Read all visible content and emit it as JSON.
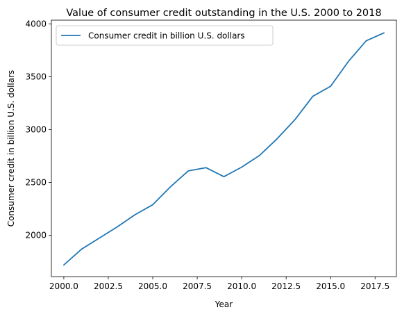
{
  "chart_data": {
    "type": "line",
    "title": "Value of consumer credit outstanding in the U.S. 2000 to 2018",
    "xlabel": "Year",
    "ylabel": "Consumer credit in billion U.S. dollars",
    "xlim": [
      1999.3,
      2018.7
    ],
    "ylim": [
      1610,
      4035
    ],
    "xticks": [
      2000.0,
      2002.5,
      2005.0,
      2007.5,
      2010.0,
      2012.5,
      2015.0,
      2017.5
    ],
    "xtick_labels": [
      "2000.0",
      "2002.5",
      "2005.0",
      "2007.5",
      "2010.0",
      "2012.5",
      "2015.0",
      "2017.5"
    ],
    "yticks": [
      2000,
      2500,
      3000,
      3500,
      4000
    ],
    "ytick_labels": [
      "2000",
      "2500",
      "3000",
      "3500",
      "4000"
    ],
    "grid": false,
    "legend_position": "top-left",
    "series": [
      {
        "name": "Consumer credit in billion U.S. dollars",
        "color": "#1f77b4",
        "x": [
          2000,
          2001,
          2002,
          2003,
          2004,
          2005,
          2006,
          2007,
          2008,
          2009,
          2010,
          2011,
          2012,
          2013,
          2014,
          2015,
          2016,
          2017,
          2018
        ],
        "y": [
          1720,
          1870,
          1975,
          2080,
          2195,
          2290,
          2460,
          2610,
          2640,
          2555,
          2645,
          2755,
          2915,
          3095,
          3315,
          3410,
          3645,
          3840,
          3915
        ]
      }
    ]
  }
}
